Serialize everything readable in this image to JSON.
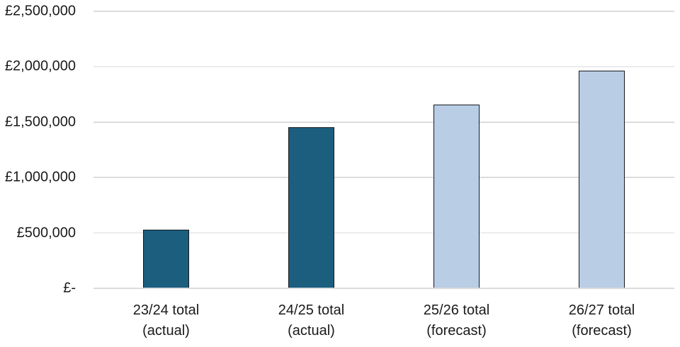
{
  "chart_data": {
    "type": "bar",
    "title": "",
    "xlabel": "",
    "ylabel": "",
    "categories": [
      "23/24 total\n(actual)",
      "24/25 total\n(actual)",
      "25/26 total\n(forecast)",
      "26/27 total\n(forecast)"
    ],
    "values": [
      530000,
      1455000,
      1660000,
      1965000
    ],
    "bar_colors": [
      "#1B5E7E",
      "#1B5E7E",
      "#B9CDE5",
      "#B9CDE5"
    ],
    "bar_border_color": "#15191E",
    "ylim": [
      0,
      2500000
    ],
    "ytick_step": 500000,
    "ytick_labels": [
      "£-",
      "£500,000",
      "£1,000,000",
      "£1,500,000",
      "£2,000,000",
      "£2,500,000"
    ],
    "grid": true,
    "gridline_color": "#DCDCDC",
    "legend": "none",
    "background_color": "#FFFFFF",
    "text_color": "#1A1A1A"
  }
}
